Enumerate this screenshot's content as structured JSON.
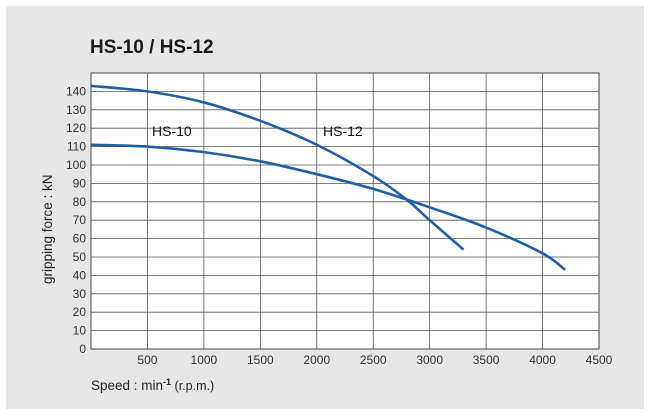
{
  "chart_data": {
    "type": "line",
    "title": "HS-10 / HS-12",
    "xlabel": "Speed : min",
    "xlabel_sup": "-1",
    "xlabel_unit": " (r.p.m.)",
    "ylabel": "gripping force : kN",
    "xlim": [
      0,
      4500
    ],
    "ylim": [
      0,
      150
    ],
    "xticks": [
      500,
      1000,
      1500,
      2000,
      2500,
      3000,
      3500,
      4000,
      4500
    ],
    "yticks": [
      0,
      10,
      20,
      30,
      40,
      50,
      60,
      70,
      80,
      90,
      100,
      110,
      120,
      130,
      140
    ],
    "x_origin_label": "0",
    "grid": true,
    "colors": {
      "series": "#1f5fa8",
      "grid": "#555555",
      "background": "#ffffff",
      "panel": "#e6e6e6"
    },
    "series": [
      {
        "name": "HS-10",
        "x": [
          0,
          500,
          1000,
          1500,
          2000,
          2500,
          3000,
          3500,
          4000,
          4200
        ],
        "y": [
          111,
          110,
          107,
          102,
          95,
          87,
          77,
          66,
          52,
          43
        ]
      },
      {
        "name": "HS-12",
        "x": [
          0,
          500,
          1000,
          1500,
          2000,
          2500,
          2800,
          3000,
          3300
        ],
        "y": [
          143,
          140,
          134,
          124,
          111,
          94,
          81,
          70,
          54
        ]
      }
    ]
  }
}
